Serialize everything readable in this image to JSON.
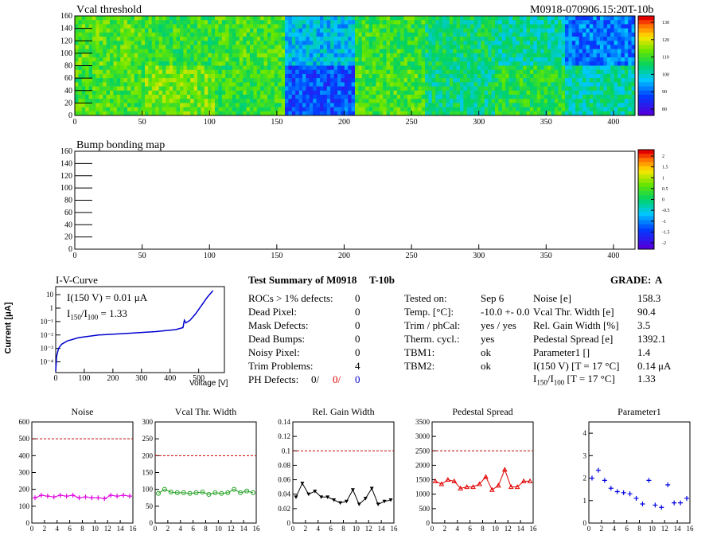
{
  "vcal_map": {
    "title": "Vcal threshold",
    "module_id": "M0918-070906.15:20T-10b",
    "x_ticks": [
      "0",
      "50",
      "100",
      "150",
      "200",
      "250",
      "300",
      "350",
      "400"
    ],
    "y_ticks": [
      "0",
      "20",
      "40",
      "60",
      "80",
      "100",
      "120",
      "140",
      "160"
    ],
    "color_ticks": [
      "130",
      "120",
      "110",
      "100",
      "90",
      "80"
    ],
    "roc_levels_top": [
      0.62,
      0.58,
      0.6,
      0.35,
      0.58,
      0.5,
      0.45,
      0.25
    ],
    "roc_levels_bottom": [
      0.6,
      0.65,
      0.58,
      0.2,
      0.6,
      0.48,
      0.55,
      0.45
    ]
  },
  "bump_map": {
    "title": "Bump bonding map",
    "x_ticks": [
      "0",
      "50",
      "100",
      "150",
      "200",
      "250",
      "300",
      "350",
      "400"
    ],
    "y_ticks": [
      "0",
      "20",
      "40",
      "60",
      "80",
      "100",
      "120",
      "140",
      "160"
    ],
    "color_ticks": [
      "2",
      "1.5",
      "1",
      "0.5",
      "0",
      "-0.5",
      "-1",
      "-1.5",
      "-2"
    ]
  },
  "iv": {
    "title": "I-V-Curve",
    "ylabel": "Current [μA]",
    "xlabel": "Voltage [V]",
    "annot1": "I(150 V) = 0.01 μA",
    "annot2_pre": "I",
    "annot2_sub1": "150",
    "annot2_mid": "/I",
    "annot2_sub2": "100",
    "annot2_post": "=  1.33",
    "x_ticks": [
      "0",
      "100",
      "200",
      "300",
      "400",
      "500"
    ],
    "y_ticks": [
      "10",
      "1",
      "10⁻¹",
      "10⁻²",
      "10⁻³",
      "10⁻⁴"
    ]
  },
  "summary": {
    "title": "Test Summary of M0918",
    "tag": "T-10b",
    "grade_label": "GRADE:",
    "grade": "A",
    "defects": [
      {
        "label": "ROCs > 1% defects:",
        "value": "0"
      },
      {
        "label": "Dead Pixel:",
        "value": "0"
      },
      {
        "label": "Mask Defects:",
        "value": "0"
      },
      {
        "label": "Dead Bumps:",
        "value": "0"
      },
      {
        "label": "Noisy Pixel:",
        "value": "0"
      },
      {
        "label": "Trim Problems:",
        "value": "4"
      }
    ],
    "ph_label": "PH Defects:",
    "ph_values": [
      "0/",
      "0/",
      "0"
    ],
    "tests": [
      {
        "label": "Tested on:",
        "value": "Sep 6"
      },
      {
        "label": "Temp. [°C]:",
        "value": "-10.0 +- 0.0"
      },
      {
        "label": "Trim / phCal:",
        "value": "yes / yes"
      },
      {
        "label": "Therm. cycl.:",
        "value": "yes"
      },
      {
        "label": "TBM1:",
        "value": "ok"
      },
      {
        "label": "TBM2:",
        "value": "ok"
      }
    ],
    "params": [
      {
        "label": "Noise [e]",
        "value": "158.3"
      },
      {
        "label": "Vcal Thr. Width [e]",
        "value": "90.4"
      },
      {
        "label": "Rel. Gain Width [%]",
        "value": "3.5"
      },
      {
        "label": "Pedestal Spread [e]",
        "value": "1392.1"
      },
      {
        "label": "Parameter1 []",
        "value": "1.4"
      },
      {
        "label": "I(150 V) [T = 17 °C]",
        "value": "0.14 μA"
      }
    ],
    "ratio_pre": "I",
    "ratio_sub1": "150",
    "ratio_mid": "/I",
    "ratio_sub2": "100",
    "ratio_post": "[T = 17 °C]",
    "ratio_value": "1.33"
  },
  "chart_data": [
    {
      "type": "scatter",
      "title": "Noise",
      "x": [
        0,
        1,
        2,
        3,
        4,
        5,
        6,
        7,
        8,
        9,
        10,
        11,
        12,
        13,
        14,
        15
      ],
      "values": [
        150,
        165,
        160,
        155,
        165,
        160,
        165,
        150,
        155,
        150,
        150,
        145,
        165,
        160,
        165,
        160
      ],
      "ylim": [
        0,
        600
      ],
      "y_ticks": [
        "0",
        "100",
        "200",
        "300",
        "400",
        "500",
        "600"
      ],
      "x_ticks": [
        "0",
        "2",
        "4",
        "6",
        "8",
        "10",
        "12",
        "14",
        "16"
      ],
      "threshold": 500,
      "color": "#e000e0",
      "marker": "cross"
    },
    {
      "type": "line",
      "title": "Vcal Thr. Width",
      "x": [
        0,
        1,
        2,
        3,
        4,
        5,
        6,
        7,
        8,
        9,
        10,
        11,
        12,
        13,
        14,
        15
      ],
      "values": [
        88,
        100,
        92,
        90,
        90,
        88,
        90,
        92,
        85,
        90,
        88,
        90,
        100,
        90,
        95,
        90
      ],
      "ylim": [
        0,
        300
      ],
      "y_ticks": [
        "0",
        "50",
        "100",
        "150",
        "200",
        "250",
        "300"
      ],
      "x_ticks": [
        "0",
        "2",
        "4",
        "6",
        "8",
        "10",
        "12",
        "14",
        "16"
      ],
      "threshold": 200,
      "color": "#20a020",
      "marker": "circle"
    },
    {
      "type": "line",
      "title": "Rel. Gain Width",
      "x": [
        0,
        1,
        2,
        3,
        4,
        5,
        6,
        7,
        8,
        9,
        10,
        11,
        12,
        13,
        14,
        15
      ],
      "values": [
        0.036,
        0.055,
        0.04,
        0.044,
        0.036,
        0.036,
        0.032,
        0.028,
        0.03,
        0.046,
        0.026,
        0.034,
        0.048,
        0.026,
        0.03,
        0.032
      ],
      "ylim": [
        0,
        0.14
      ],
      "y_ticks": [
        "0",
        "0.02",
        "0.04",
        "0.06",
        "0.08",
        "0.1",
        "0.12",
        "0.14"
      ],
      "x_ticks": [
        "0",
        "2",
        "4",
        "6",
        "8",
        "10",
        "12",
        "14",
        "16"
      ],
      "threshold": 0.1,
      "color": "#000000",
      "marker": "triangle-down"
    },
    {
      "type": "line",
      "title": "Pedestal Spread",
      "x": [
        0,
        1,
        2,
        3,
        4,
        5,
        6,
        7,
        8,
        9,
        10,
        11,
        12,
        13,
        14,
        15
      ],
      "values": [
        1450,
        1350,
        1500,
        1450,
        1200,
        1250,
        1250,
        1350,
        1600,
        1150,
        1300,
        1850,
        1250,
        1250,
        1450,
        1450
      ],
      "ylim": [
        0,
        3500
      ],
      "y_ticks": [
        "0",
        "500",
        "1000",
        "1500",
        "2000",
        "2500",
        "3000",
        "3500"
      ],
      "x_ticks": [
        "0",
        "2",
        "4",
        "6",
        "8",
        "10",
        "12",
        "14",
        "16"
      ],
      "threshold": 2500,
      "color": "#e00000",
      "marker": "triangle-up"
    },
    {
      "type": "scatter",
      "title": "Parameter1",
      "x": [
        0,
        1,
        2,
        3,
        4,
        5,
        6,
        7,
        8,
        9,
        10,
        11,
        12,
        13,
        14,
        15
      ],
      "values": [
        2.0,
        2.35,
        1.9,
        1.55,
        1.4,
        1.35,
        1.3,
        1.1,
        0.85,
        1.9,
        0.8,
        0.7,
        1.7,
        0.9,
        0.9,
        1.1
      ],
      "ylim": [
        0,
        4.5
      ],
      "y_ticks": [
        "0",
        "1",
        "2",
        "3",
        "4"
      ],
      "x_ticks": [
        "0",
        "2",
        "4",
        "6",
        "8",
        "10",
        "12",
        "14",
        "16"
      ],
      "threshold": null,
      "color": "#0000e0",
      "marker": "plus"
    }
  ],
  "colors": {
    "blue": "#0000d0",
    "red": "#e00000",
    "dash": "#c00000"
  }
}
